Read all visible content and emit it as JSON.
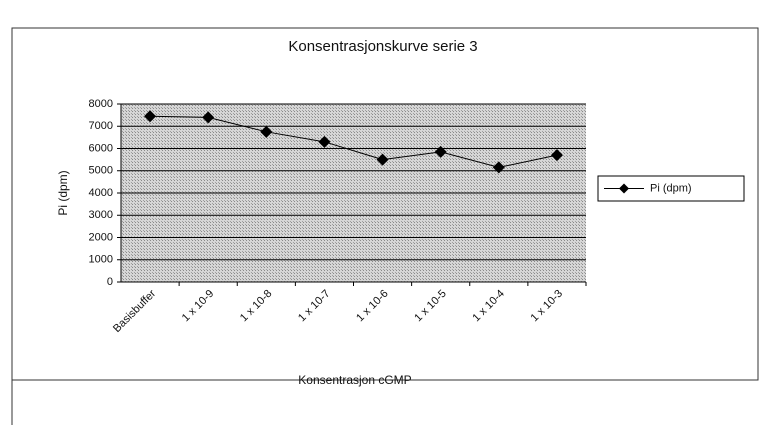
{
  "chart_data": {
    "type": "line",
    "title": "Konsentrasjonskurve serie 3",
    "x_label": "Konsentrasjon cGMP",
    "y_label": "Pi (dpm)",
    "categories": [
      "Basisbuffer",
      "1 x 10-9",
      "1 x 10-8",
      "1 x 10-7",
      "1 x 10-6",
      "1 x 10-5",
      "1 x 10-4",
      "1 x 10-3"
    ],
    "series": [
      {
        "name": "Pi (dpm)",
        "color": "#000000",
        "values": [
          7450,
          7400,
          6750,
          6300,
          5500,
          5850,
          5150,
          5700
        ]
      }
    ],
    "ylim": [
      0,
      8000
    ],
    "yticks": [
      0,
      1000,
      2000,
      3000,
      4000,
      5000,
      6000,
      7000,
      8000
    ],
    "grid": true,
    "legend": "right"
  }
}
